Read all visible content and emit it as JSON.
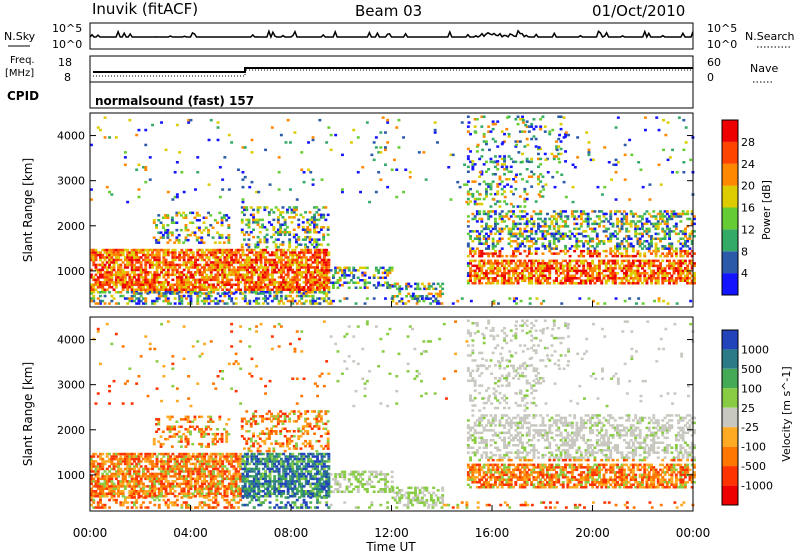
{
  "header": {
    "station": "Inuvik (fitACF)",
    "beam": "Beam 03",
    "date": "01/Oct/2010"
  },
  "status_panels": {
    "nsky_label": "N.Sky",
    "nsearch_label": "N.Search",
    "nsky_ticks": [
      "10^5",
      "10^0"
    ],
    "nsearch_ticks": [
      "10^5",
      "10^0"
    ],
    "freq_label_1": "Freq.",
    "freq_label_2": "[MHz]",
    "freq_ticks": [
      "18",
      "8"
    ],
    "nave_label": "Nave",
    "nave_ticks": [
      "60",
      "0"
    ],
    "cpid_label": "CPID",
    "cpid_text": "normalsound (fast) 157"
  },
  "chart_data": [
    {
      "type": "heatmap",
      "name": "power",
      "ylabel": "Slant Range [km]",
      "y_ticks": [
        1000,
        2000,
        3000,
        4000
      ],
      "ylim": [
        200,
        4500
      ],
      "xlim": [
        0,
        24
      ],
      "colorbar_title": "Power [dB]",
      "colorbar_ticks": [
        4,
        8,
        12,
        16,
        20,
        24,
        28
      ],
      "colorbar_range": [
        0,
        32
      ],
      "colors": [
        "#1414ff",
        "#2a5aa8",
        "#33aa66",
        "#66cc33",
        "#ddcc00",
        "#ff8800",
        "#ff4400",
        "#ee0000"
      ]
    },
    {
      "type": "heatmap",
      "name": "velocity",
      "ylabel": "Slant Range [km]",
      "y_ticks": [
        1000,
        2000,
        3000,
        4000
      ],
      "ylim": [
        200,
        4500
      ],
      "xlim": [
        0,
        24
      ],
      "colorbar_title": "Velocity [m s^-1]",
      "colorbar_ticks": [
        "1000",
        "500",
        "100",
        "25",
        "-25",
        "-100",
        "-500",
        "-1000"
      ],
      "colors": [
        "#2244bb",
        "#2a7a88",
        "#44aa55",
        "#88cc44",
        "#c8c8c0",
        "#ffaa22",
        "#ff7700",
        "#ff3300",
        "#ee0000"
      ]
    }
  ],
  "x_axis": {
    "ticks": [
      "00:00",
      "04:00",
      "08:00",
      "12:00",
      "16:00",
      "20:00",
      "00:00"
    ],
    "label": "Time UT"
  }
}
